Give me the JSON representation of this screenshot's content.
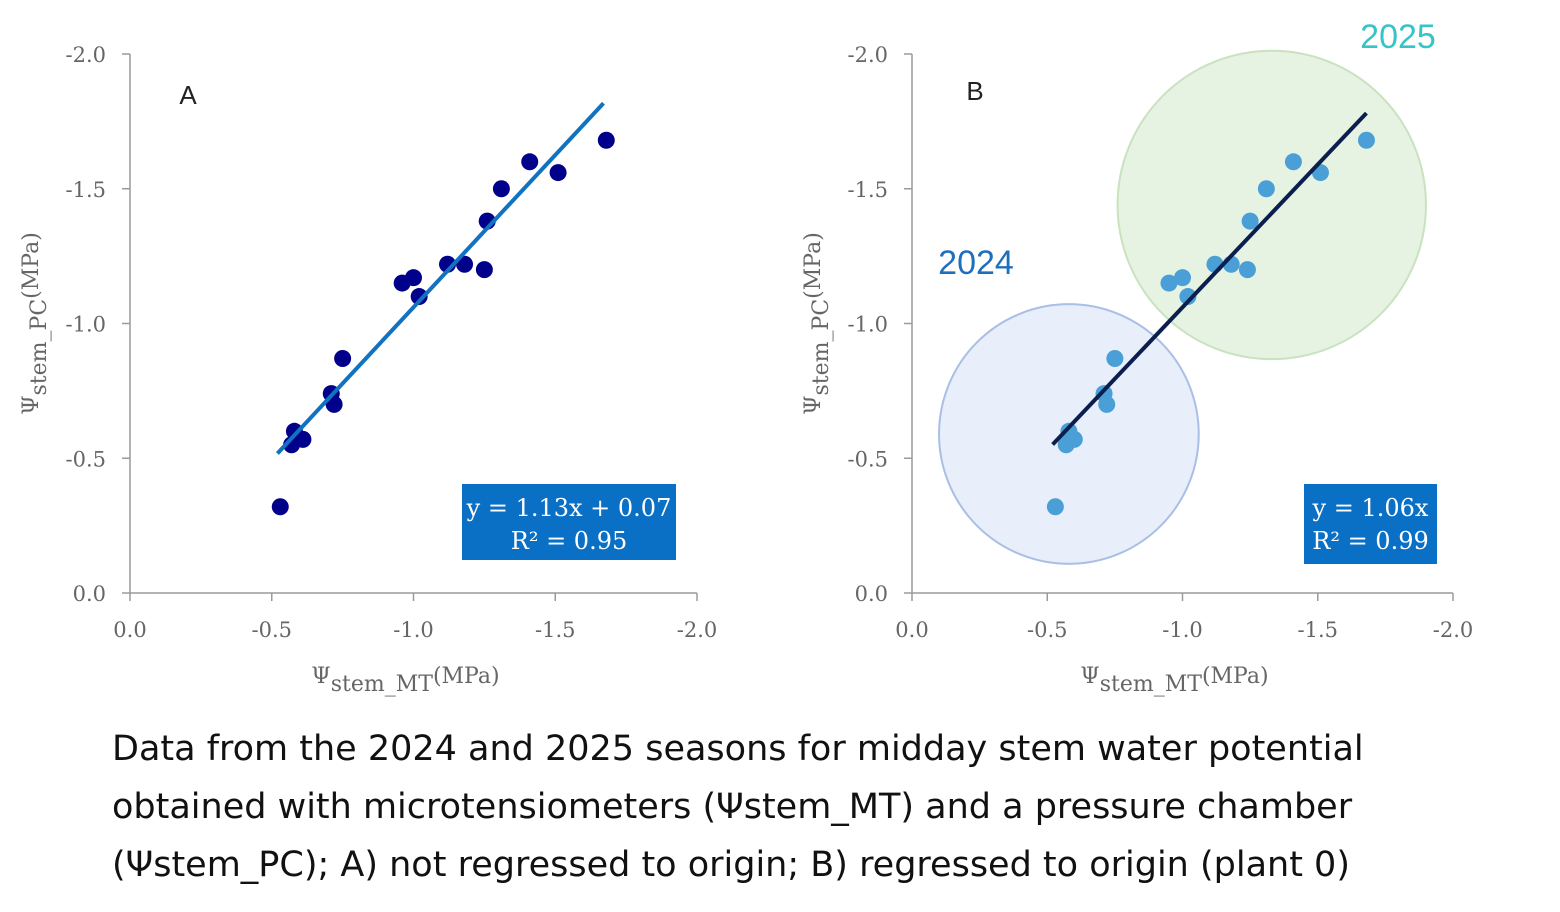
{
  "colors": {
    "axis": "#9a9a9a",
    "tick_text": "#666666",
    "points_A": "#00008b",
    "line_A": "#1072c1",
    "points_B": "#4a9fd6",
    "line_B": "#0b1f4f",
    "eq_box": "#0a70c6",
    "circle_2024_fill": "#e8eefa",
    "circle_2024_stroke": "#a9bfe6",
    "circle_2025_fill": "#e6f3e2",
    "circle_2025_stroke": "#c9e2bf",
    "label_2024": "#1f6fba",
    "label_2025": "#38c3c6"
  },
  "chart_data": [
    {
      "panel": "A",
      "type": "scatter",
      "xlabel": {
        "main": "Ψ",
        "sub": "stem_MT",
        "unit": "(MPa)"
      },
      "ylabel": {
        "main": "Ψ",
        "sub": "stem_PC",
        "unit": "(MPa)"
      },
      "xlim": [
        0.0,
        -2.0
      ],
      "ylim": [
        0.0,
        -2.0
      ],
      "x_ticks": [
        "0.0",
        "-0.5",
        "-1.0",
        "-1.5",
        "-2.0"
      ],
      "y_ticks": [
        "0.0",
        "-0.5",
        "-1.0",
        "-1.5",
        "-2.0"
      ],
      "x_tick_values": [
        0.0,
        -0.5,
        -1.0,
        -1.5,
        -2.0
      ],
      "y_tick_values": [
        0.0,
        -0.5,
        -1.0,
        -1.5,
        -2.0
      ],
      "points": [
        [
          -0.53,
          -0.32
        ],
        [
          -0.57,
          -0.55
        ],
        [
          -0.58,
          -0.6
        ],
        [
          -0.61,
          -0.57
        ],
        [
          -0.71,
          -0.74
        ],
        [
          -0.72,
          -0.7
        ],
        [
          -0.75,
          -0.87
        ],
        [
          -0.96,
          -1.15
        ],
        [
          -1.0,
          -1.17
        ],
        [
          -1.02,
          -1.1
        ],
        [
          -1.12,
          -1.22
        ],
        [
          -1.18,
          -1.22
        ],
        [
          -1.25,
          -1.2
        ],
        [
          -1.26,
          -1.38
        ],
        [
          -1.31,
          -1.5
        ],
        [
          -1.41,
          -1.6
        ],
        [
          -1.51,
          -1.56
        ],
        [
          -1.68,
          -1.68
        ]
      ],
      "fit": {
        "slope": 1.13,
        "intercept": 0.07,
        "x_range": [
          -0.52,
          -1.67
        ]
      },
      "equation": "y = 1.13x + 0.07",
      "r2": "R² = 0.95"
    },
    {
      "panel": "B",
      "type": "scatter",
      "xlabel": {
        "main": "Ψ",
        "sub": "stem_MT",
        "unit": "(MPa)"
      },
      "ylabel": {
        "main": "Ψ",
        "sub": "stem_PC",
        "unit": "(MPa)"
      },
      "xlim": [
        0.0,
        -2.0
      ],
      "ylim": [
        0.0,
        -2.0
      ],
      "x_ticks": [
        "0.0",
        "-0.5",
        "-1.0",
        "-1.5",
        "-2.0"
      ],
      "y_ticks": [
        "0.0",
        "-0.5",
        "-1.0",
        "-1.5",
        "-2.0"
      ],
      "x_tick_values": [
        0.0,
        -0.5,
        -1.0,
        -1.5,
        -2.0
      ],
      "y_tick_values": [
        0.0,
        -0.5,
        -1.0,
        -1.5,
        -2.0
      ],
      "points": [
        [
          -0.53,
          -0.32
        ],
        [
          -0.57,
          -0.55
        ],
        [
          -0.58,
          -0.6
        ],
        [
          -0.6,
          -0.57
        ],
        [
          -0.71,
          -0.74
        ],
        [
          -0.72,
          -0.7
        ],
        [
          -0.75,
          -0.87
        ],
        [
          -0.95,
          -1.15
        ],
        [
          -1.0,
          -1.17
        ],
        [
          -1.02,
          -1.1
        ],
        [
          -1.12,
          -1.22
        ],
        [
          -1.18,
          -1.22
        ],
        [
          -1.24,
          -1.2
        ],
        [
          -1.25,
          -1.38
        ],
        [
          -1.31,
          -1.5
        ],
        [
          -1.41,
          -1.6
        ],
        [
          -1.51,
          -1.56
        ],
        [
          -1.68,
          -1.68
        ]
      ],
      "fit": {
        "slope": 1.06,
        "intercept": 0.0,
        "x_range": [
          -0.52,
          -1.68
        ]
      },
      "equation": "y = 1.06x",
      "r2": "R² = 0.99",
      "groups": [
        {
          "label": "2024",
          "center": [
            -0.58,
            -0.59
          ],
          "radius": 0.48
        },
        {
          "label": "2025",
          "center": [
            -1.33,
            -1.44
          ],
          "radius": 0.57
        }
      ]
    }
  ],
  "caption": {
    "line1": "Data from the 2024 and 2025 seasons for midday stem water potential",
    "line2": "obtained with microtensiometers (Ψstem_MT) and a pressure chamber",
    "line3": "(Ψstem_PC); A) not regressed to origin; B) regressed to origin (plant 0)"
  }
}
